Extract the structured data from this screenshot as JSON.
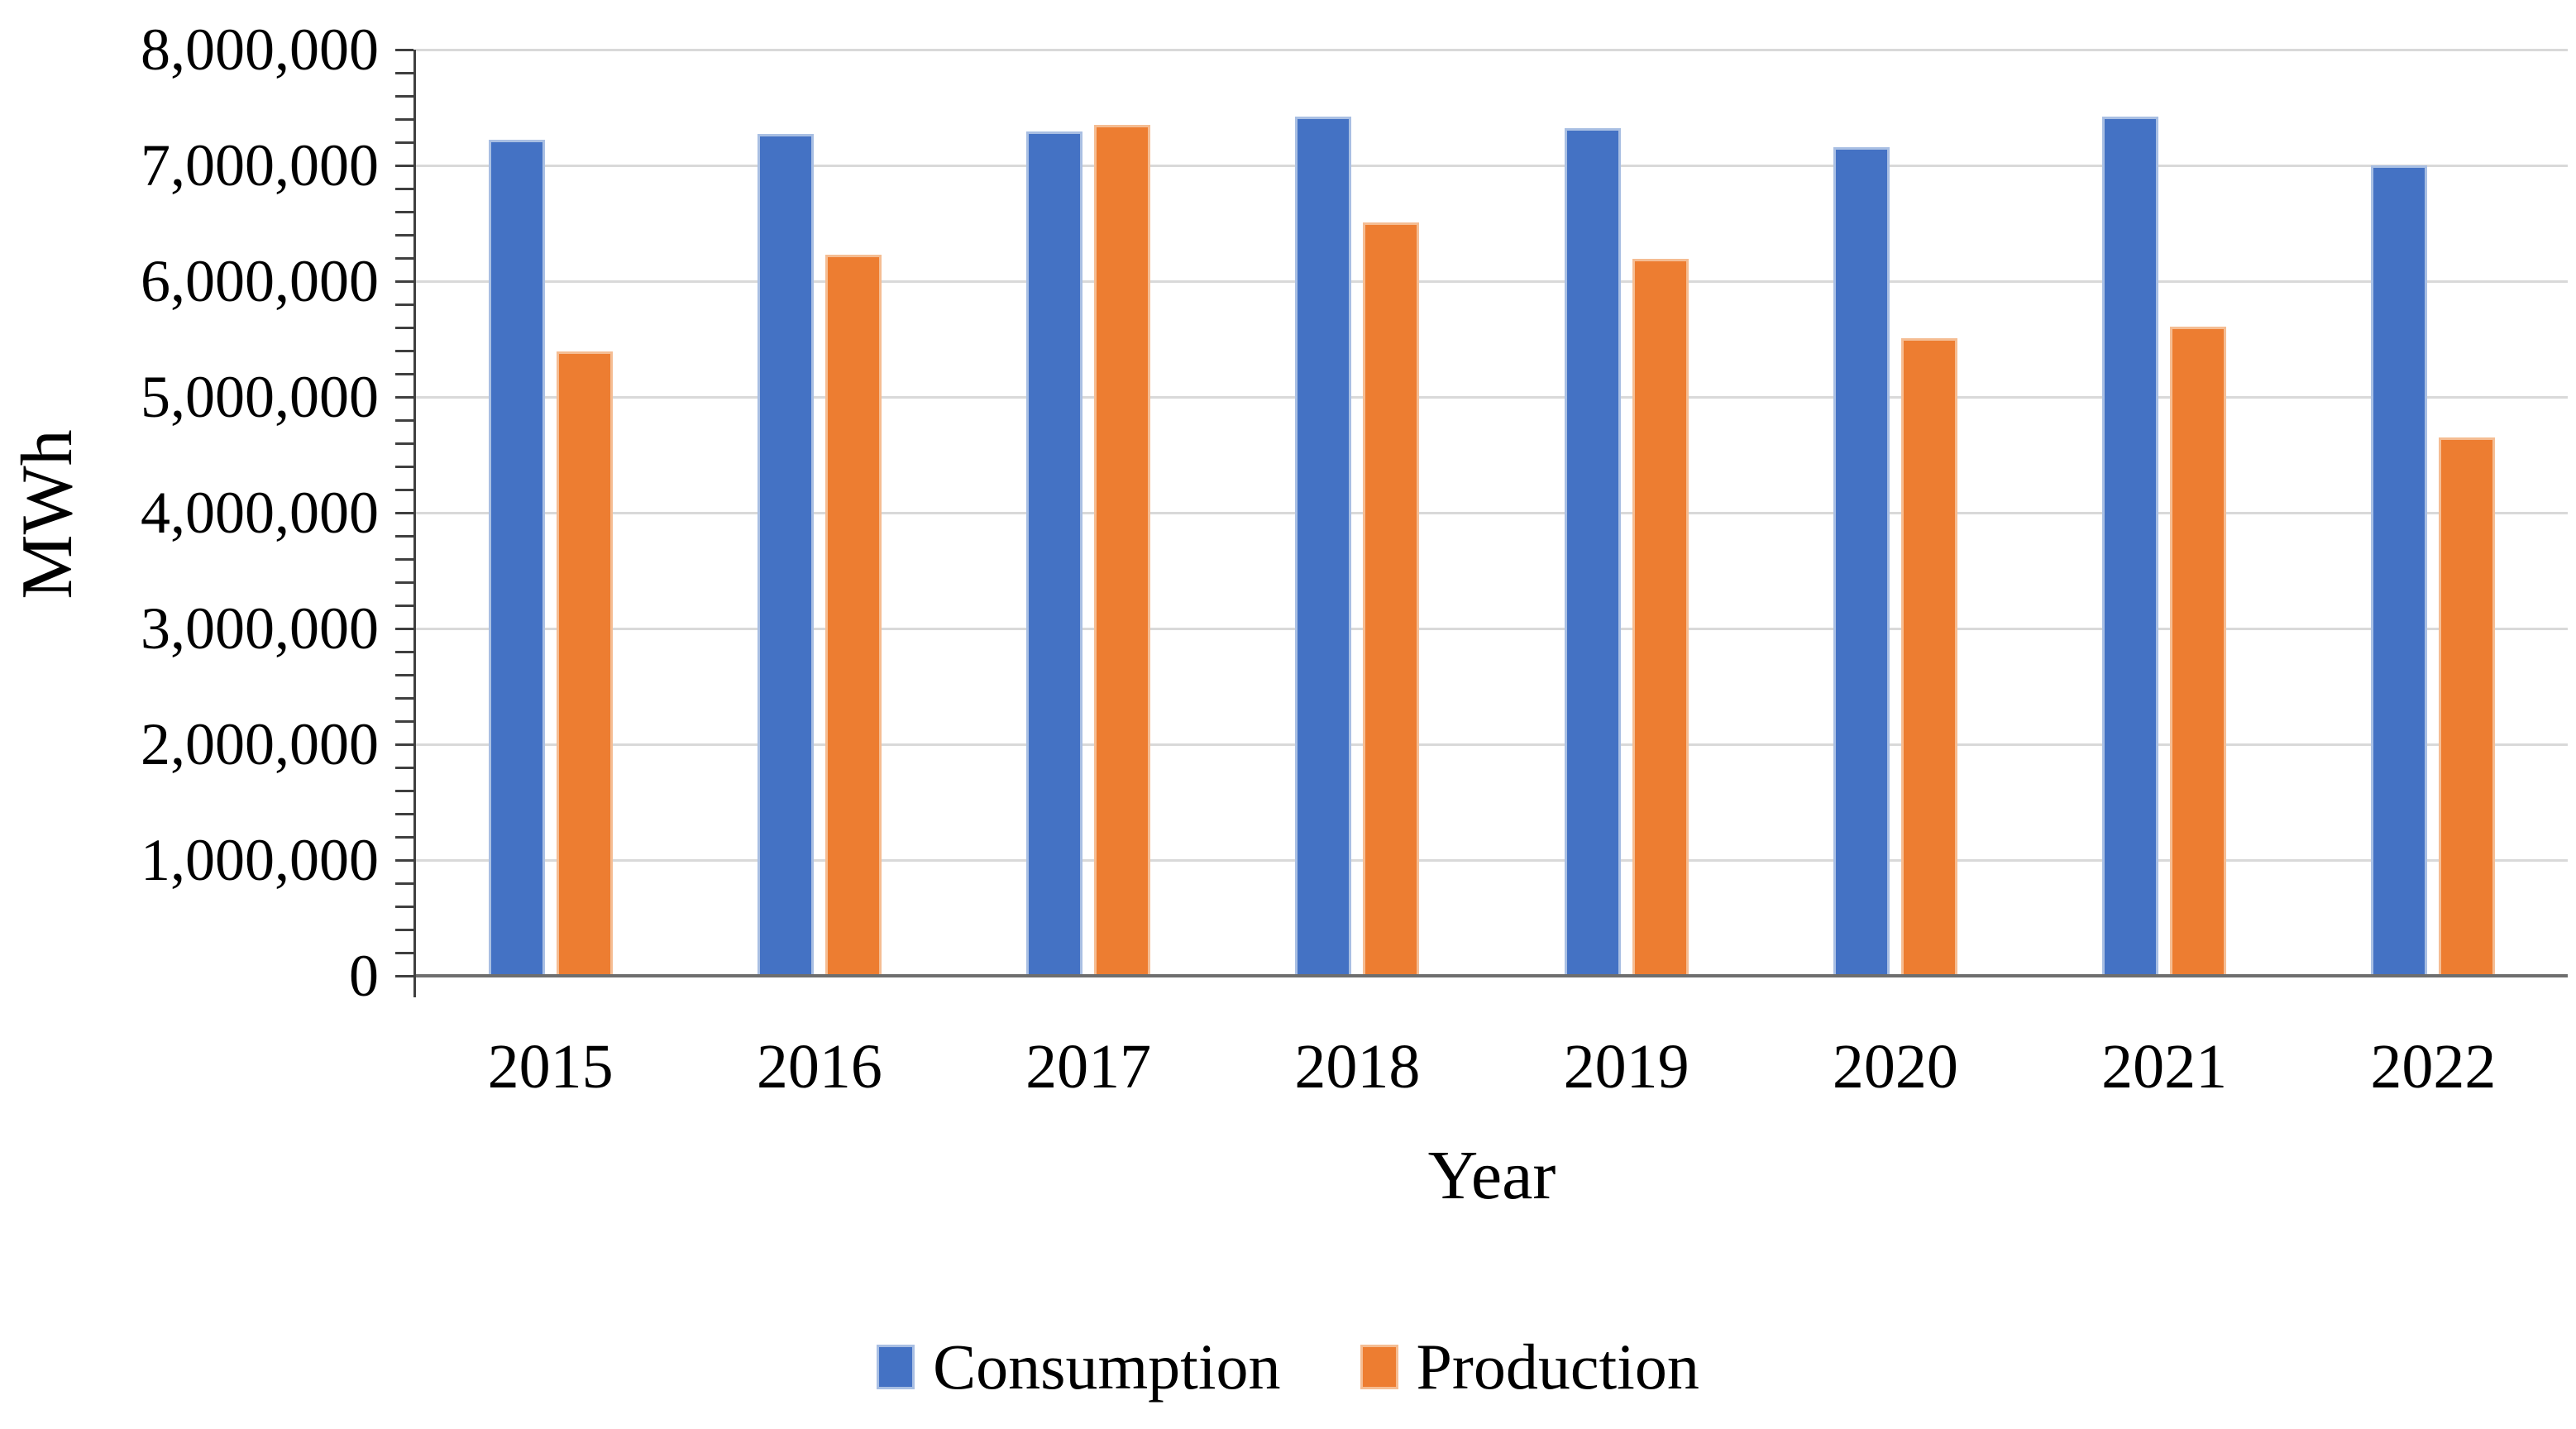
{
  "chart_data": {
    "type": "bar",
    "title": "",
    "xlabel": "Year",
    "ylabel": "MWh",
    "categories": [
      "2015",
      "2016",
      "2017",
      "2018",
      "2019",
      "2020",
      "2021",
      "2022"
    ],
    "series": [
      {
        "name": "Consumption",
        "color": "#4472C4",
        "edge_color": "#A9BFE3",
        "values": [
          7220000,
          7270000,
          7290000,
          7420000,
          7320000,
          7160000,
          7420000,
          7000000
        ]
      },
      {
        "name": "Production",
        "color": "#ED7D31",
        "edge_color": "#F5BD93",
        "values": [
          5390000,
          6230000,
          7350000,
          6510000,
          6190000,
          5510000,
          5610000,
          4650000
        ]
      }
    ],
    "ylim": [
      0,
      8000000
    ],
    "y_major_step": 1000000,
    "y_minor_step": 200000,
    "y_tick_labels": [
      "0",
      "1,000,000",
      "2,000,000",
      "3,000,000",
      "4,000,000",
      "5,000,000",
      "6,000,000",
      "7,000,000",
      "8,000,000"
    ],
    "grid": "horizontal-major",
    "gridline_color": "#d9d9d9",
    "axis_line_color": "#3f3f3f",
    "baseline_color": "#6e6e6e",
    "text_color": "#000000",
    "legend_position": "bottom"
  }
}
